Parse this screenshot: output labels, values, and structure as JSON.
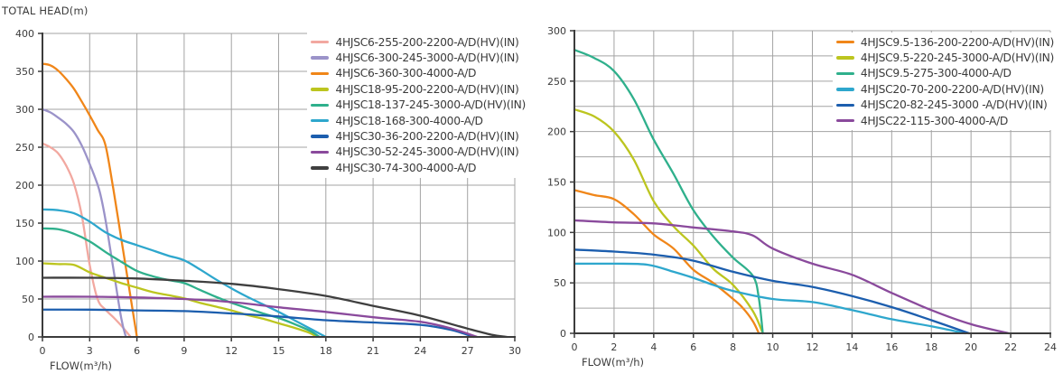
{
  "chart_data": [
    {
      "type": "line",
      "title": "TOTAL HEAD(m)",
      "xlabel": "FLOW(m³/h)",
      "ylabel": "",
      "xlim": [
        0,
        30
      ],
      "ylim": [
        0,
        400
      ],
      "x_ticks": [
        0,
        3,
        6,
        9,
        12,
        15,
        18,
        21,
        24,
        27,
        30
      ],
      "y_ticks": [
        0,
        50,
        100,
        150,
        200,
        250,
        300,
        350,
        400
      ],
      "x_grid_step": 3,
      "y_grid_step": 50,
      "grid": true,
      "legend_position": "top-right",
      "series": [
        {
          "name": "4HJSC6-255-200-2200-A/D(HV)(IN)",
          "color": "#f2a8a0",
          "points": [
            [
              0,
              255
            ],
            [
              0.5,
              250
            ],
            [
              1,
              242
            ],
            [
              1.5,
              226
            ],
            [
              2,
              202
            ],
            [
              2.5,
              160
            ],
            [
              3,
              95
            ],
            [
              3.5,
              50
            ],
            [
              4,
              36
            ],
            [
              4.5,
              26
            ],
            [
              5,
              15
            ],
            [
              5.6,
              0
            ]
          ]
        },
        {
          "name": "4HJSC6-300-245-3000-A/D(HV)(IN)",
          "color": "#9b93c9",
          "points": [
            [
              0,
              300
            ],
            [
              0.5,
              296
            ],
            [
              1,
              289
            ],
            [
              1.5,
              281
            ],
            [
              2,
              270
            ],
            [
              2.5,
              252
            ],
            [
              3,
              228
            ],
            [
              3.6,
              194
            ],
            [
              4,
              155
            ],
            [
              4.5,
              90
            ],
            [
              5,
              25
            ],
            [
              5.3,
              0
            ]
          ]
        },
        {
          "name": "4HJSC6-360-300-4000-A/D",
          "color": "#f08619",
          "points": [
            [
              0,
              360
            ],
            [
              0.5,
              358
            ],
            [
              1,
              351
            ],
            [
              1.5,
              340
            ],
            [
              2,
              327
            ],
            [
              2.5,
              310
            ],
            [
              3,
              292
            ],
            [
              3.5,
              273
            ],
            [
              4,
              253
            ],
            [
              4.5,
              195
            ],
            [
              5,
              130
            ],
            [
              5.5,
              65
            ],
            [
              6,
              0
            ]
          ]
        },
        {
          "name": "4HJSC18-95-200-2200-A/D(HV)(IN)",
          "color": "#bcc51f",
          "points": [
            [
              0,
              97
            ],
            [
              1,
              96
            ],
            [
              2,
              95
            ],
            [
              3,
              85
            ],
            [
              4,
              78
            ],
            [
              5,
              71
            ],
            [
              6,
              65
            ],
            [
              7,
              59
            ],
            [
              8,
              55
            ],
            [
              9,
              51
            ],
            [
              10,
              45
            ],
            [
              11,
              40
            ],
            [
              12,
              35
            ],
            [
              13,
              29
            ],
            [
              14,
              24
            ],
            [
              15,
              18
            ],
            [
              16,
              12
            ],
            [
              17,
              5
            ],
            [
              17.4,
              0
            ]
          ]
        },
        {
          "name": "4HJSC18-137-245-3000-A/D(HV)(IN)",
          "color": "#2fb08c",
          "points": [
            [
              0,
              143
            ],
            [
              1,
              142
            ],
            [
              2,
              136
            ],
            [
              3,
              126
            ],
            [
              4,
              112
            ],
            [
              5,
              99
            ],
            [
              6,
              87
            ],
            [
              7,
              80
            ],
            [
              8,
              75
            ],
            [
              9,
              71
            ],
            [
              10,
              62
            ],
            [
              11,
              53
            ],
            [
              12,
              45
            ],
            [
              13,
              38
            ],
            [
              14,
              31
            ],
            [
              15,
              25
            ],
            [
              16,
              17
            ],
            [
              17,
              8
            ],
            [
              17.6,
              0
            ]
          ]
        },
        {
          "name": "4HJSC18-168-300-4000-A/D",
          "color": "#2ea7cd",
          "points": [
            [
              0,
              168
            ],
            [
              1,
              167
            ],
            [
              2,
              163
            ],
            [
              3,
              152
            ],
            [
              4,
              138
            ],
            [
              5,
              128
            ],
            [
              6,
              121
            ],
            [
              7,
              114
            ],
            [
              8,
              107
            ],
            [
              9,
              101
            ],
            [
              10,
              89
            ],
            [
              11,
              76
            ],
            [
              12,
              64
            ],
            [
              13,
              53
            ],
            [
              14,
              43
            ],
            [
              15,
              33
            ],
            [
              16,
              22
            ],
            [
              17,
              11
            ],
            [
              18,
              0
            ]
          ]
        },
        {
          "name": "4HJSC30-36-200-2200-A/D(HV)(IN)",
          "color": "#1c5eae",
          "points": [
            [
              0,
              36
            ],
            [
              3,
              36
            ],
            [
              6,
              35
            ],
            [
              9,
              34
            ],
            [
              12,
              31
            ],
            [
              15,
              27
            ],
            [
              18,
              22
            ],
            [
              21,
              19
            ],
            [
              24,
              16
            ],
            [
              26,
              9
            ],
            [
              27.4,
              0
            ]
          ]
        },
        {
          "name": "4HJSC30-52-245-3000-A/D(HV)(IN)",
          "color": "#8a4a9c",
          "points": [
            [
              0,
              53
            ],
            [
              3,
              53
            ],
            [
              6,
              52
            ],
            [
              9,
              50
            ],
            [
              12,
              46
            ],
            [
              15,
              39
            ],
            [
              18,
              33
            ],
            [
              21,
              26
            ],
            [
              24,
              20
            ],
            [
              26,
              11
            ],
            [
              27.6,
              0
            ]
          ]
        },
        {
          "name": "4HJSC30-74-300-4000-A/D",
          "color": "#3f3f3f",
          "points": [
            [
              0,
              78
            ],
            [
              3,
              78
            ],
            [
              6,
              77
            ],
            [
              9,
              74
            ],
            [
              12,
              70
            ],
            [
              15,
              63
            ],
            [
              18,
              54
            ],
            [
              21,
              41
            ],
            [
              24,
              28
            ],
            [
              27,
              11
            ],
            [
              28.5,
              3
            ],
            [
              29.5,
              0
            ]
          ]
        }
      ]
    },
    {
      "type": "line",
      "title": "",
      "xlabel": "FLOW(m³/h)",
      "ylabel": "",
      "xlim": [
        0,
        24
      ],
      "ylim": [
        0,
        300
      ],
      "x_ticks": [
        0,
        2,
        4,
        6,
        8,
        10,
        12,
        14,
        16,
        18,
        20,
        22,
        24
      ],
      "y_ticks": [
        0,
        50,
        100,
        150,
        200,
        250,
        300
      ],
      "x_grid_step": 2,
      "y_grid_step": 25,
      "grid": true,
      "legend_position": "top-right",
      "series": [
        {
          "name": "4HJSC9.5-136-200-2200-A/D(HV)(IN)",
          "color": "#f08619",
          "points": [
            [
              0,
              142
            ],
            [
              1,
              137
            ],
            [
              2,
              133
            ],
            [
              3,
              118
            ],
            [
              4,
              98
            ],
            [
              5,
              84
            ],
            [
              6,
              63
            ],
            [
              7,
              50
            ],
            [
              8,
              34
            ],
            [
              8.5,
              25
            ],
            [
              9,
              12
            ],
            [
              9.3,
              0
            ]
          ]
        },
        {
          "name": "4HJSC9.5-220-245-3000-A/D(HV)(IN)",
          "color": "#bcc51f",
          "points": [
            [
              0,
              222
            ],
            [
              1,
              215
            ],
            [
              2,
              200
            ],
            [
              3,
              172
            ],
            [
              4,
              131
            ],
            [
              5,
              106
            ],
            [
              6,
              87
            ],
            [
              7,
              64
            ],
            [
              8,
              48
            ],
            [
              9,
              22
            ],
            [
              9.5,
              0
            ]
          ]
        },
        {
          "name": "4HJSC9.5-275-300-4000-A/D",
          "color": "#2fb08c",
          "points": [
            [
              0,
              281
            ],
            [
              1,
              273
            ],
            [
              2,
              260
            ],
            [
              3,
              232
            ],
            [
              4,
              192
            ],
            [
              5,
              158
            ],
            [
              6,
              122
            ],
            [
              7,
              96
            ],
            [
              8,
              75
            ],
            [
              9,
              57
            ],
            [
              9.3,
              35
            ],
            [
              9.5,
              0
            ]
          ]
        },
        {
          "name": "4HJSC20-70-200-2200-A/D(HV)(IN)",
          "color": "#2ea7cd",
          "points": [
            [
              0,
              69
            ],
            [
              2,
              69
            ],
            [
              3.7,
              68
            ],
            [
              5,
              61
            ],
            [
              6,
              55
            ],
            [
              7,
              48
            ],
            [
              8,
              42
            ],
            [
              10,
              34
            ],
            [
              12,
              31
            ],
            [
              14,
              23
            ],
            [
              16,
              14
            ],
            [
              18,
              7
            ],
            [
              19.7,
              0
            ]
          ]
        },
        {
          "name": "4HJSC20-82-245-3000 -A/D(HV)(IN)",
          "color": "#1c5eae",
          "points": [
            [
              0,
              83
            ],
            [
              2,
              81
            ],
            [
              4,
              78
            ],
            [
              6,
              72
            ],
            [
              8,
              61
            ],
            [
              10,
              52
            ],
            [
              12,
              46
            ],
            [
              14,
              37
            ],
            [
              16,
              26
            ],
            [
              18,
              13
            ],
            [
              19.9,
              0
            ]
          ]
        },
        {
          "name": "4HJSC22-115-300-4000-A/D",
          "color": "#8a4a9c",
          "points": [
            [
              0,
              112
            ],
            [
              2,
              110
            ],
            [
              4,
              109
            ],
            [
              6,
              105
            ],
            [
              8,
              101
            ],
            [
              9,
              97
            ],
            [
              10,
              84
            ],
            [
              12,
              69
            ],
            [
              14,
              58
            ],
            [
              16,
              40
            ],
            [
              18,
              23
            ],
            [
              20,
              9
            ],
            [
              21.9,
              0
            ]
          ]
        }
      ]
    }
  ],
  "styles": {
    "grid_color": "#a3a3a3",
    "axis_color": "#3c3c3c",
    "text_color": "#3b3b3b",
    "background": "#ffffff"
  }
}
